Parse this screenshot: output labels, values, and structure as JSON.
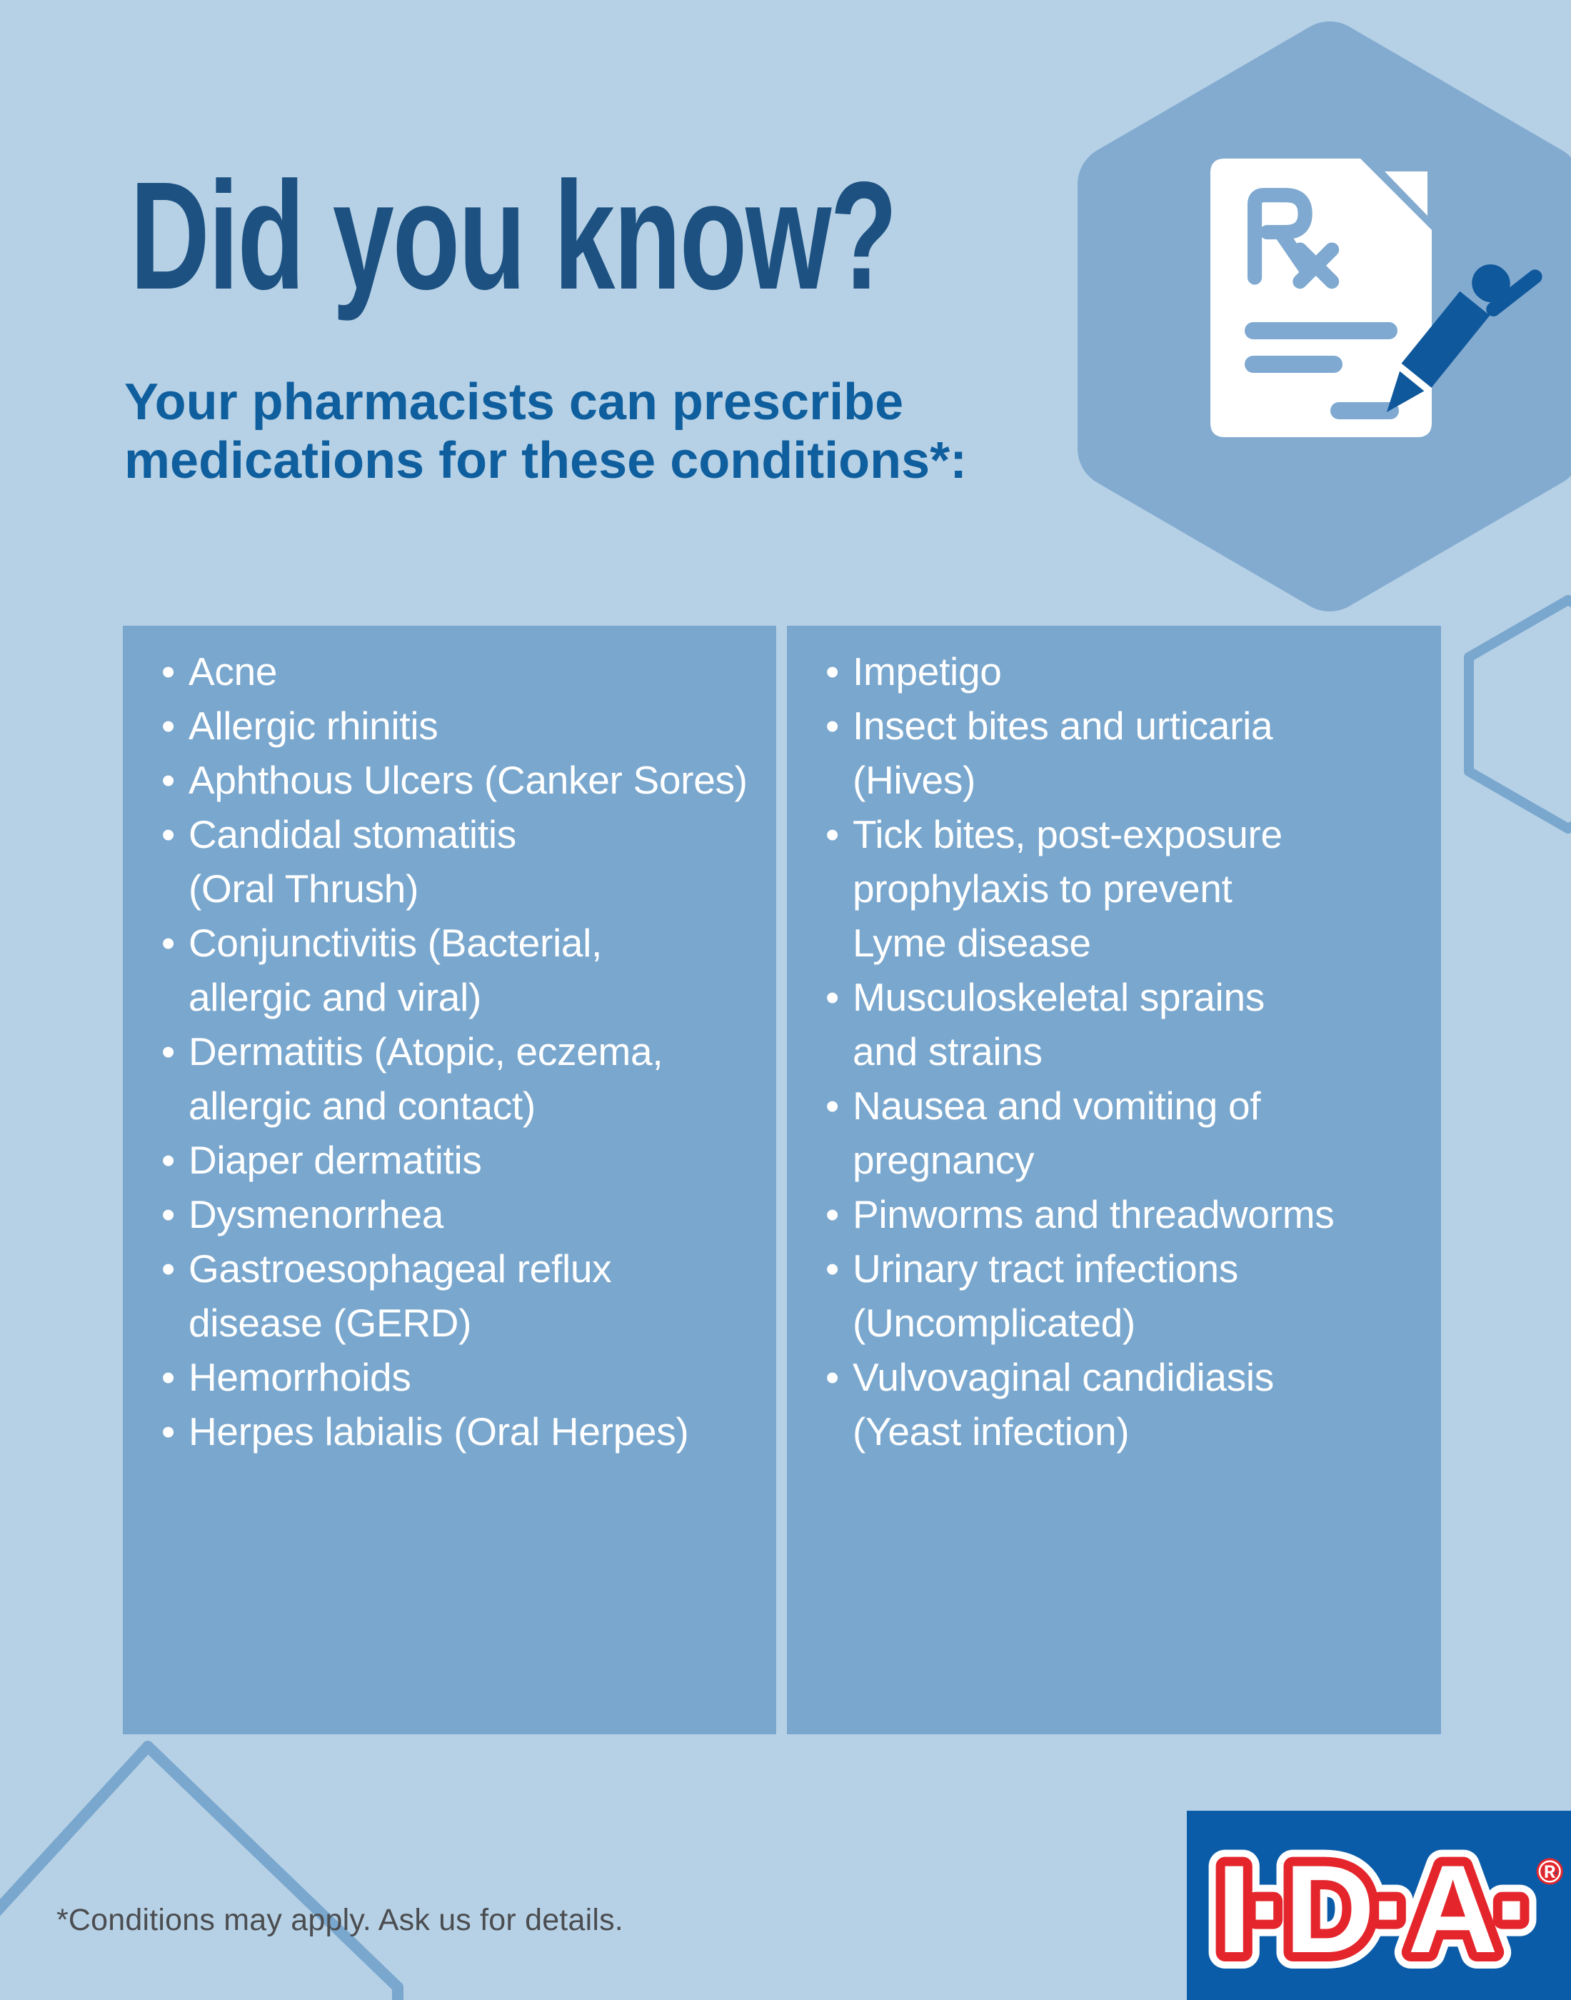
{
  "title": "Did you know?",
  "subtitle_lines": [
    "Your pharmacists can prescribe",
    "medications for these conditions*:"
  ],
  "bullet": "•",
  "panels": {
    "left": {
      "items": [
        [
          "Acne"
        ],
        [
          "Allergic rhinitis"
        ],
        [
          "Aphthous Ulcers (Canker Sores)"
        ],
        [
          "Candidal stomatitis",
          "(Oral Thrush)"
        ],
        [
          "Conjunctivitis (Bacterial,",
          "allergic and viral)"
        ],
        [
          "Dermatitis (Atopic, eczema,",
          "allergic and contact)"
        ],
        [
          "Diaper dermatitis"
        ],
        [
          "Dysmenorrhea"
        ],
        [
          "Gastroesophageal reflux",
          "disease (GERD)"
        ],
        [
          "Hemorrhoids"
        ],
        [
          "Herpes labialis (Oral Herpes)"
        ]
      ]
    },
    "right": {
      "items": [
        [
          "Impetigo"
        ],
        [
          "Insect bites and urticaria",
          "(Hives)"
        ],
        [
          "Tick bites, post-exposure",
          "prophylaxis to prevent",
          "Lyme disease"
        ],
        [
          "Musculoskeletal sprains",
          "and strains"
        ],
        [
          "Nausea and vomiting of",
          "pregnancy"
        ],
        [
          "Pinworms and threadworms"
        ],
        [
          "Urinary tract infections",
          "(Uncomplicated)"
        ],
        [
          "Vulvovaginal candidiasis",
          "(Yeast infection)"
        ]
      ]
    }
  },
  "footnote": "*Conditions may apply. Ask us for details.",
  "logo": {
    "text": "I·D·A·",
    "registered": "®"
  },
  "icons": {
    "badge": "rx-document-pen-icon",
    "decorations": [
      "hexagon-badge",
      "hexagon-outline-right",
      "hexagon-outline-bottom-left"
    ]
  },
  "colors": {
    "background": "#b6d1e6",
    "panel": "#7aa7ce",
    "hexagon": "#83abd0",
    "title": "#1d5181",
    "subtitle": "#0f5f9f",
    "list_text": "#ffffff",
    "doc_accent": "#7fa9d0",
    "pen": "#0f589b",
    "footnote": "#4b4d50",
    "logo_blue": "#0b5ca8",
    "logo_red": "#e4262c"
  }
}
